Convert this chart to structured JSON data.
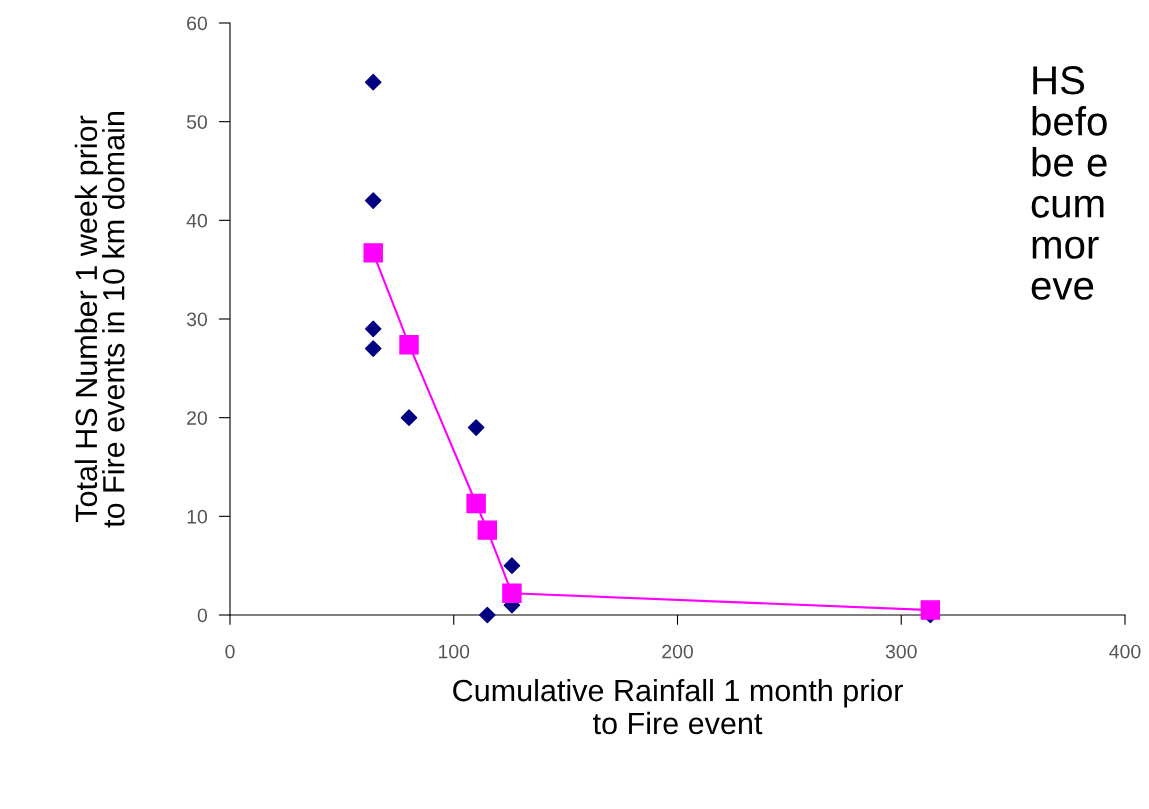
{
  "chart_data": {
    "type": "scatter",
    "xlabel": "Cumulative Rainfall 1 month prior\nto Fire event",
    "ylabel": "Total HS Number 1 week prior\nto Fire events in 10 km domain",
    "annotations": [
      "HS\nbefo\nbe e\ncum\nmor\neve"
    ],
    "series": [
      {
        "color": "#000080",
        "marker": "diamond",
        "x": [
          64,
          64,
          64,
          64,
          80,
          110,
          115,
          126,
          126,
          313
        ],
        "values": [
          54,
          42,
          29,
          27,
          20,
          19,
          0,
          5,
          1,
          0
        ]
      },
      {
        "type": "line",
        "color": "#ff00ff",
        "marker": "square",
        "line_style": "solid",
        "x": [
          64,
          80,
          110,
          115,
          126,
          313
        ],
        "values": [
          36.7,
          27.4,
          11.3,
          8.6,
          2.2,
          0.5
        ]
      }
    ],
    "xlim": [
      0,
      400
    ],
    "xticks": [
      0,
      100,
      200,
      300,
      400
    ],
    "ylim": [
      0,
      60
    ],
    "yticks": [
      0,
      10,
      20,
      30,
      40,
      50,
      60
    ],
    "grid": false,
    "legend": false
  }
}
